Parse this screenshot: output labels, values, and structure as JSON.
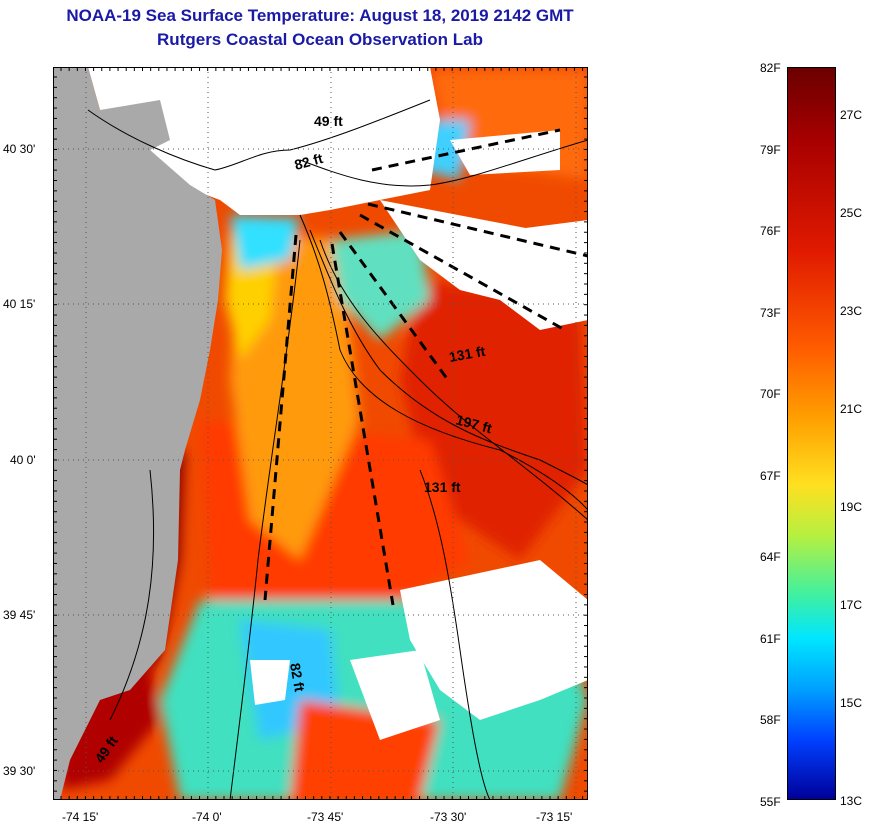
{
  "header": {
    "title_line1": "NOAA-19 Sea Surface Temperature:  August 18, 2019 2142 GMT",
    "title_line2": "Rutgers Coastal Ocean Observation Lab"
  },
  "map": {
    "lat_labels": [
      "40 30'",
      "40 15'",
      "40 0'",
      "39 45'",
      "39 30'"
    ],
    "lon_labels": [
      "-74 15'",
      "-74 0'",
      "-73 45'",
      "-73 30'",
      "-73 15'"
    ],
    "depth_labels": [
      "49 ft",
      "82 ft",
      "131 ft",
      "197 ft",
      "131 ft",
      "82 ft",
      "49 ft"
    ],
    "colors": {
      "land": "#a9a9a9",
      "no_data": "#ffffff",
      "warm_core": "#e02000",
      "very_warm_coast": "#8a0000",
      "cool_upwelling": "#30c8ff"
    }
  },
  "colorbar": {
    "fahrenheit": [
      "82F",
      "79F",
      "76F",
      "73F",
      "70F",
      "67F",
      "64F",
      "61F",
      "58F",
      "55F"
    ],
    "celsius": [
      "27C",
      "25C",
      "23C",
      "21C",
      "19C",
      "17C",
      "15C",
      "13C"
    ],
    "range_f": [
      55,
      82
    ],
    "range_c": [
      13,
      28
    ]
  }
}
